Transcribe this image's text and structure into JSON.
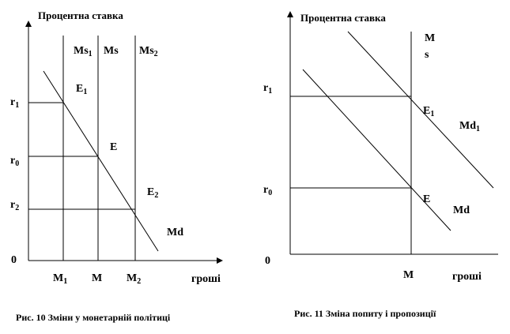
{
  "figure1": {
    "y_axis_title": "Процентна ставка",
    "x_axis_title": "гроші",
    "origin": "0",
    "supply_curves": [
      {
        "label": "Ms",
        "sub": "1"
      },
      {
        "label": "Ms",
        "sub": ""
      },
      {
        "label": "Ms",
        "sub": "2"
      }
    ],
    "rates": [
      {
        "label": "r",
        "sub": "1"
      },
      {
        "label": "r",
        "sub": "0"
      },
      {
        "label": "r",
        "sub": "2"
      }
    ],
    "money": [
      {
        "label": "M",
        "sub": "1"
      },
      {
        "label": "M",
        "sub": ""
      },
      {
        "label": "M",
        "sub": "2"
      }
    ],
    "equilibria": [
      {
        "label": "E",
        "sub": "1"
      },
      {
        "label": "E",
        "sub": ""
      },
      {
        "label": "E",
        "sub": "2"
      }
    ],
    "demand_label": "Md",
    "caption": "Рис. 10  Зміни у монетарній політиці"
  },
  "figure2": {
    "y_axis_title": "Процентна ставка",
    "x_axis_title": "гроші",
    "origin": "0",
    "supply_label_line1": "M",
    "supply_label_line2": "s",
    "rates": [
      {
        "label": "r",
        "sub": "1"
      },
      {
        "label": "r",
        "sub": "0"
      }
    ],
    "money_label": "M",
    "equilibria": [
      {
        "label": "E",
        "sub": "1"
      },
      {
        "label": "E",
        "sub": ""
      }
    ],
    "demand_labels": [
      {
        "label": "Md",
        "sub": "1"
      },
      {
        "label": "Md",
        "sub": ""
      }
    ],
    "caption": "Рис. 11  Зміна попиту і пропозиції"
  }
}
